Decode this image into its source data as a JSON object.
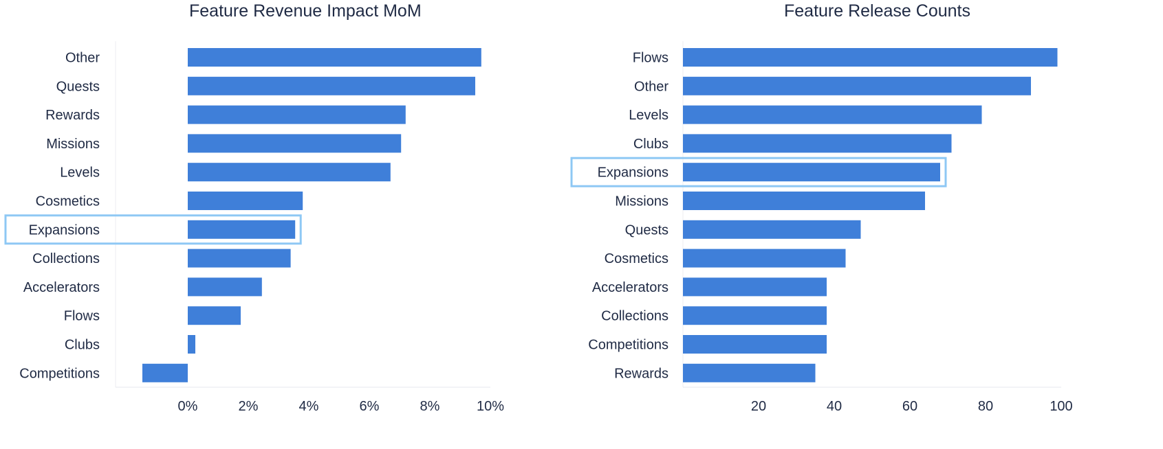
{
  "chart_data": [
    {
      "type": "bar",
      "orientation": "horizontal",
      "title": "Feature Revenue Impact MoM",
      "categories": [
        "Other",
        "Quests",
        "Rewards",
        "Missions",
        "Levels",
        "Cosmetics",
        "Expansions",
        "Collections",
        "Accelerators",
        "Flows",
        "Clubs",
        "Competitions"
      ],
      "values": [
        9.7,
        9.5,
        7.2,
        7.05,
        6.7,
        3.8,
        3.55,
        3.4,
        2.45,
        1.75,
        0.25,
        -1.5
      ],
      "xlim": [
        -2,
        10
      ],
      "xticks": [
        0,
        2,
        4,
        6,
        8,
        10
      ],
      "xtick_labels": [
        "0%",
        "2%",
        "4%",
        "6%",
        "8%",
        "10%"
      ],
      "highlight": "Expansions",
      "bar_color": "#3f7fd9",
      "highlight_color": "#8ec8f4"
    },
    {
      "type": "bar",
      "orientation": "horizontal",
      "title": "Feature Release Counts",
      "categories": [
        "Flows",
        "Other",
        "Levels",
        "Clubs",
        "Expansions",
        "Missions",
        "Quests",
        "Cosmetics",
        "Accelerators",
        "Collections",
        "Competitions",
        "Rewards"
      ],
      "values": [
        99,
        92,
        79,
        71,
        68,
        64,
        47,
        43,
        38,
        38,
        38,
        35
      ],
      "xlim": [
        0,
        100
      ],
      "xticks": [
        20,
        40,
        60,
        80,
        100
      ],
      "xtick_labels": [
        "20",
        "40",
        "60",
        "80",
        "100"
      ],
      "highlight": "Expansions",
      "bar_color": "#3f7fd9",
      "highlight_color": "#8ec8f4"
    }
  ]
}
